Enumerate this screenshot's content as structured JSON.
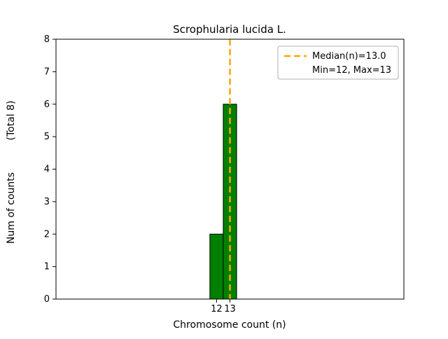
{
  "chart_data": {
    "type": "bar",
    "title": "Scrophularia lucida L.",
    "xlabel": "Chromosome count (n)",
    "ylabel": "Num of counts",
    "ylabel_secondary": "(Total 8)",
    "categories": [
      12,
      13
    ],
    "values": [
      2,
      6
    ],
    "bar_width": 1,
    "xlim": [
      0,
      26
    ],
    "ylim": [
      0,
      8
    ],
    "xticks": [
      12,
      13
    ],
    "yticks": [
      0,
      1,
      2,
      3,
      4,
      5,
      6,
      7,
      8
    ],
    "total_counts": 8,
    "min": 12,
    "max": 13,
    "median": 13.0,
    "bar_color": "#008000",
    "bar_edge_color": "#000000",
    "median_line": {
      "x": 13.0,
      "color": "#FFA500",
      "style": "dashed"
    },
    "legend": {
      "position": "upper right",
      "line_color": "#FFA500",
      "entries": [
        "Median(n)=13.0",
        "Min=12, Max=13"
      ]
    },
    "grid": false,
    "background_color": "#ffffff",
    "axes_edge_color": "#000000"
  }
}
